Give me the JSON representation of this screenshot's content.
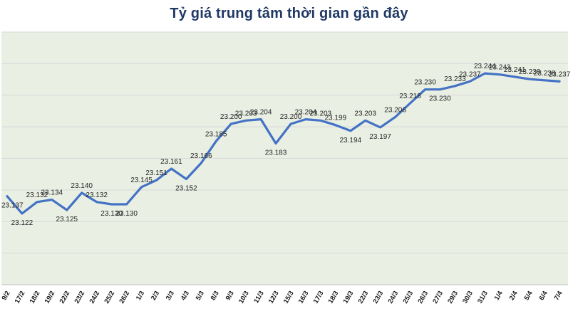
{
  "colors": {
    "line": "#4472c4",
    "plot_bg": "#e9efe3",
    "grid": "#d9d9d9",
    "axis": "#bfbfbf",
    "title": "#1f3864",
    "data_label": "#262626",
    "tick_label": "#1a1a1a"
  },
  "chart_data": {
    "type": "line",
    "title": "Tỷ giá trung tâm thời gian gần đây",
    "xlabel": "",
    "ylabel": "",
    "legend": "none",
    "grid": "horizontal",
    "data_labels_visible": true,
    "ylim": [
      23.06,
      23.28
    ],
    "gridline_count": 9,
    "categories": [
      "9/2",
      "17/2",
      "18/2",
      "19/2",
      "22/2",
      "23/2",
      "24/2",
      "25/2",
      "26/2",
      "1/3",
      "2/3",
      "3/3",
      "4/3",
      "5/3",
      "8/3",
      "9/3",
      "10/3",
      "11/3",
      "12/3",
      "15/3",
      "16/3",
      "17/3",
      "18/3",
      "19/3",
      "22/3",
      "23/3",
      "24/3",
      "25/3",
      "26/3",
      "27/3",
      "29/3",
      "30/3",
      "31/3",
      "1/4",
      "2/4",
      "5/4",
      "6/4",
      "7/4"
    ],
    "values": [
      23.137,
      23.122,
      23.132,
      23.134,
      23.125,
      23.14,
      23.132,
      23.13,
      23.13,
      23.145,
      23.151,
      23.161,
      23.152,
      23.166,
      23.185,
      23.2,
      23.203,
      23.204,
      23.183,
      23.2,
      23.204,
      23.203,
      23.199,
      23.194,
      23.203,
      23.197,
      23.206,
      23.218,
      23.23,
      23.23,
      23.233,
      23.237,
      23.244,
      23.243,
      23.241,
      23.239,
      23.238,
      23.237
    ]
  }
}
